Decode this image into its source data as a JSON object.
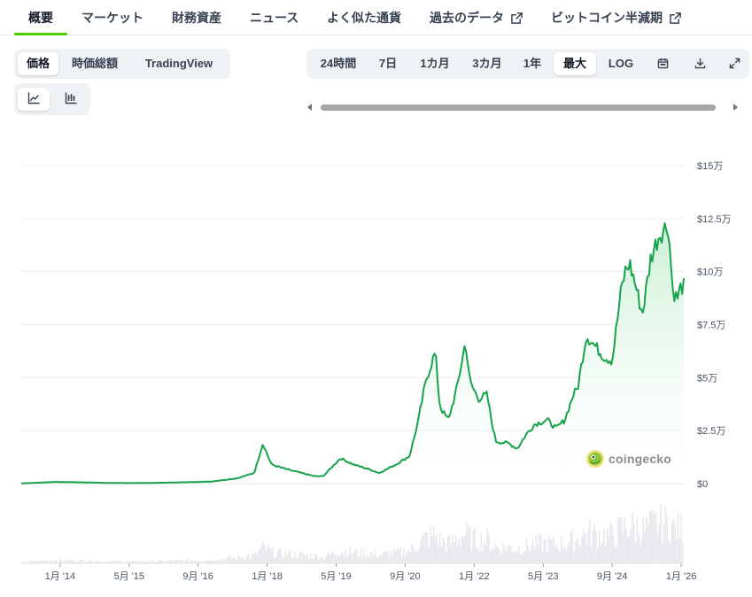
{
  "tabs": [
    {
      "label": "概要",
      "active": true
    },
    {
      "label": "マーケット"
    },
    {
      "label": "財務資産"
    },
    {
      "label": "ニュース"
    },
    {
      "label": "よく似た通貨"
    },
    {
      "label": "過去のデータ",
      "external": true
    },
    {
      "label": "ビットコイン半減期",
      "external": true
    }
  ],
  "view_toggle": {
    "items": [
      "価格",
      "時価総額",
      "TradingView"
    ],
    "selected": "価格"
  },
  "chart_style": {
    "items": [
      {
        "icon": "line-chart-icon",
        "selected": true
      },
      {
        "icon": "candlestick-chart-icon",
        "selected": false
      }
    ]
  },
  "range": {
    "items": [
      "24時間",
      "7日",
      "1カ月",
      "3カ月",
      "1年",
      "最大",
      "LOG"
    ],
    "selected": "最大",
    "icons": [
      "calendar-icon",
      "download-icon",
      "expand-icon"
    ]
  },
  "watermark": "coingecko",
  "colors": {
    "accent": "#4bcc00",
    "line": "#16a34a",
    "fill": "#dcf5e3",
    "volume": "#e5e7eb",
    "grid": "#ececec"
  },
  "chart_data": {
    "type": "area",
    "series": [
      {
        "x": [
          "2013-04",
          "2013-12",
          "2014-06",
          "2015-01",
          "2015-06",
          "2016-01",
          "2016-06",
          "2016-12",
          "2017-06",
          "2017-10",
          "2017-12",
          "2018-02",
          "2018-06",
          "2018-12",
          "2019-02",
          "2019-06",
          "2019-09",
          "2019-12",
          "2020-03",
          "2020-07",
          "2020-10",
          "2020-12",
          "2021-01",
          "2021-02",
          "2021-04",
          "2021-05",
          "2021-06",
          "2021-07",
          "2021-09",
          "2021-11",
          "2021-12",
          "2022-02",
          "2022-04",
          "2022-05",
          "2022-06",
          "2022-09",
          "2022-11",
          "2023-01",
          "2023-03",
          "2023-06",
          "2023-08",
          "2023-10",
          "2023-12",
          "2024-01",
          "2024-03",
          "2024-05",
          "2024-07",
          "2024-09",
          "2024-11",
          "2024-12",
          "2025-01",
          "2025-02",
          "2025-04",
          "2025-06",
          "2025-08",
          "2025-10",
          "2025-11",
          "2025-12",
          "2026-01"
        ],
        "values": [
          100,
          800,
          600,
          300,
          250,
          430,
          650,
          950,
          2500,
          5000,
          19000,
          9000,
          6500,
          3500,
          3500,
          12000,
          9000,
          7200,
          5000,
          9200,
          13000,
          29000,
          40000,
          50000,
          62000,
          37000,
          33000,
          30000,
          45000,
          67000,
          48000,
          40000,
          42000,
          30000,
          20000,
          19000,
          16500,
          23000,
          28000,
          30000,
          26000,
          30000,
          42000,
          45000,
          70000,
          65000,
          60000,
          58000,
          90000,
          100000,
          104000,
          97000,
          80000,
          107000,
          118000,
          122000,
          92000,
          87000,
          93000
        ]
      }
    ],
    "volume": true,
    "y_ticks": [
      "$0",
      "$2.5万",
      "$5万",
      "$7.5万",
      "$10万",
      "$12.5万",
      "$15万"
    ],
    "ylim": [
      0,
      150000
    ],
    "x_ticks": [
      {
        "label": "1月 '14",
        "date": "2014-01"
      },
      {
        "label": "5月 '15",
        "date": "2015-05"
      },
      {
        "label": "9月 '16",
        "date": "2016-09"
      },
      {
        "label": "1月 '18",
        "date": "2018-01"
      },
      {
        "label": "5月 '19",
        "date": "2019-05"
      },
      {
        "label": "9月 '20",
        "date": "2020-09"
      },
      {
        "label": "1月 '22",
        "date": "2022-01"
      },
      {
        "label": "5月 '23",
        "date": "2023-05"
      },
      {
        "label": "9月 '24",
        "date": "2024-09"
      },
      {
        "label": "1月 '26",
        "date": "2026-01"
      }
    ],
    "grid": true
  }
}
